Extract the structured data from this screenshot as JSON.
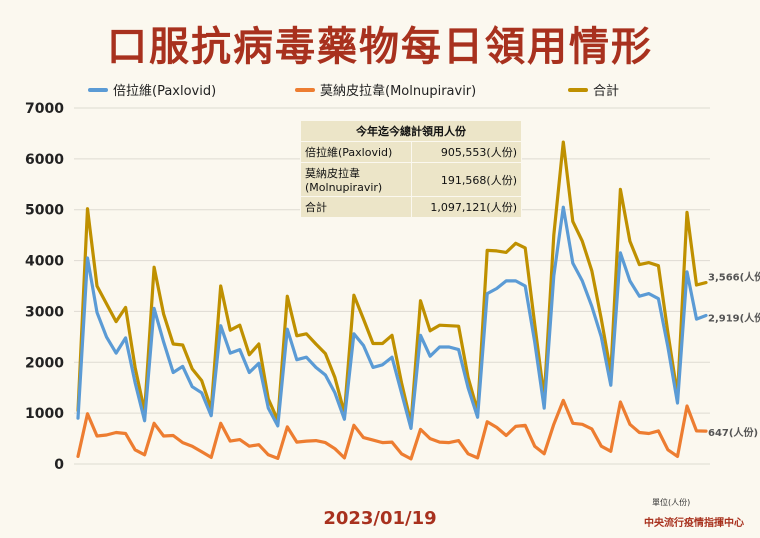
{
  "title": "口服抗病毒藥物每日領用情形",
  "date": "2023/01/19",
  "agency": "中央流行疫情指揮中心",
  "unit_note": "單位(人份)",
  "summary": {
    "header": "今年迄今總計領用人份",
    "rows": [
      {
        "label": "倍拉維(Paxlovid)",
        "value": "905,553(人份)"
      },
      {
        "label": "莫納皮拉韋\n(Molnupiravir)",
        "value": "191,568(人份)"
      },
      {
        "label": "合計",
        "value": "1,097,121(人份)"
      }
    ]
  },
  "colors": {
    "paxlovid": "#5b9bd5",
    "molnupiravir": "#ed7d31",
    "total": "#bf9000",
    "title": "#a8311e"
  },
  "chart_data": {
    "type": "line",
    "ylim": [
      0,
      7000
    ],
    "yticks": [
      0,
      1000,
      2000,
      3000,
      4000,
      5000,
      6000,
      7000
    ],
    "grid": true,
    "legend": "top",
    "end_labels": {
      "total": "3,566(人份)",
      "paxlovid": "2,919(人份)",
      "molnupiravir": "647(人份)"
    },
    "series": [
      {
        "name": "倍拉維(Paxlovid)",
        "key": "paxlovid",
        "values": [
          900,
          4050,
          2980,
          2500,
          2180,
          2480,
          1600,
          850,
          3060,
          2400,
          1800,
          1920,
          1520,
          1400,
          950,
          2720,
          2180,
          2250,
          1800,
          1980,
          1100,
          750,
          2650,
          2050,
          2100,
          1900,
          1750,
          1400,
          880,
          2560,
          2330,
          1900,
          1950,
          2100,
          1400,
          700,
          2530,
          2120,
          2300,
          2300,
          2250,
          1500,
          920,
          3350,
          3450,
          3600,
          3600,
          3500,
          2400,
          1100,
          3700,
          5050,
          3950,
          3600,
          3100,
          2500,
          1550,
          4150,
          3600,
          3300,
          3350,
          3250,
          2300,
          1200,
          3780,
          2850,
          2919
        ]
      },
      {
        "name": "莫納皮拉韋(Molnupiravir)",
        "key": "molnupiravir",
        "values": [
          150,
          990,
          550,
          570,
          620,
          600,
          280,
          180,
          800,
          550,
          560,
          420,
          350,
          240,
          130,
          800,
          450,
          480,
          350,
          380,
          180,
          110,
          730,
          430,
          450,
          460,
          420,
          300,
          120,
          760,
          520,
          470,
          420,
          430,
          200,
          100,
          680,
          500,
          430,
          420,
          460,
          200,
          120,
          830,
          720,
          560,
          740,
          760,
          350,
          200,
          780,
          1250,
          800,
          780,
          690,
          350,
          250,
          1220,
          780,
          620,
          600,
          650,
          280,
          150,
          1140,
          650,
          647
        ]
      },
      {
        "name": "合計",
        "key": "total",
        "values": [
          1050,
          5020,
          3500,
          3150,
          2800,
          3080,
          1900,
          1030,
          3870,
          2950,
          2360,
          2340,
          1870,
          1640,
          1080,
          3500,
          2630,
          2730,
          2150,
          2360,
          1280,
          860,
          3300,
          2520,
          2560,
          2360,
          2170,
          1700,
          1000,
          3320,
          2850,
          2370,
          2370,
          2530,
          1600,
          800,
          3210,
          2620,
          2730,
          2720,
          2710,
          1700,
          1040,
          4200,
          4190,
          4160,
          4340,
          4250,
          2750,
          1300,
          4500,
          6330,
          4770,
          4380,
          3800,
          2850,
          1800,
          5400,
          4380,
          3920,
          3960,
          3900,
          2580,
          1350,
          4950,
          3520,
          3566
        ]
      }
    ]
  }
}
